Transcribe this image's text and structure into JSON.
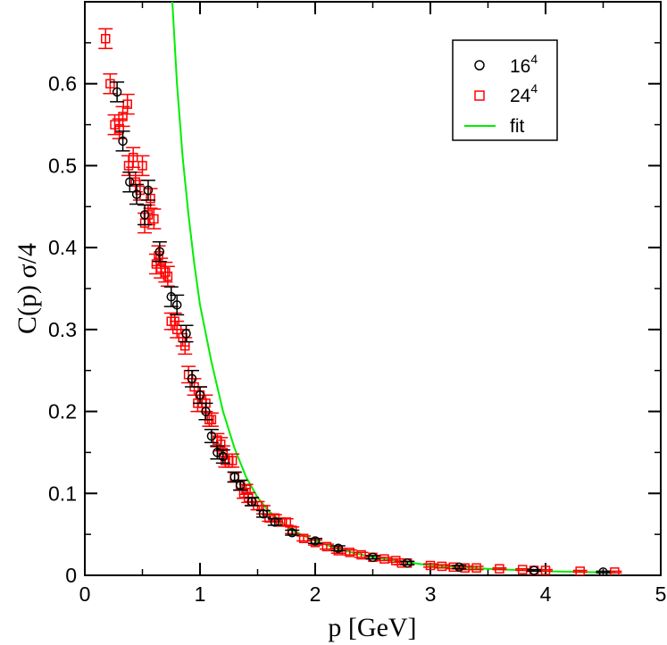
{
  "chart_data": {
    "type": "scatter",
    "title": "",
    "xlabel": "p [GeV]",
    "ylabel": "C(p) σ/4",
    "xlim": [
      0,
      5
    ],
    "ylim": [
      0,
      0.7
    ],
    "x_ticks": [
      "0",
      "1",
      "2",
      "3",
      "4",
      "5"
    ],
    "y_ticks": [
      "0",
      "0.1",
      "0.2",
      "0.3",
      "0.4",
      "0.5",
      "0.6"
    ],
    "grid": false,
    "legend_position": "top-right",
    "series": [
      {
        "name_base": "16",
        "name_sup": "4",
        "marker": "circle",
        "color": "#000000",
        "x": [
          0.28,
          0.33,
          0.39,
          0.45,
          0.52,
          0.55,
          0.65,
          0.75,
          0.8,
          0.88,
          0.93,
          1.0,
          1.05,
          1.1,
          1.15,
          1.2,
          1.3,
          1.35,
          1.45,
          1.55,
          1.65,
          1.8,
          2.0,
          2.2,
          2.5,
          2.8,
          3.25,
          3.9,
          4.5
        ],
        "y": [
          0.59,
          0.53,
          0.48,
          0.465,
          0.44,
          0.47,
          0.395,
          0.34,
          0.33,
          0.295,
          0.24,
          0.22,
          0.2,
          0.17,
          0.15,
          0.145,
          0.12,
          0.11,
          0.09,
          0.075,
          0.065,
          0.052,
          0.042,
          0.033,
          0.022,
          0.015,
          0.01,
          0.006,
          0.004
        ],
        "err": [
          0.012,
          0.012,
          0.012,
          0.012,
          0.012,
          0.012,
          0.012,
          0.012,
          0.012,
          0.01,
          0.01,
          0.01,
          0.01,
          0.008,
          0.008,
          0.008,
          0.006,
          0.006,
          0.005,
          0.004,
          0.004,
          0.003,
          0.003,
          0.003,
          0.002,
          0.002,
          0.002,
          0.001,
          0.001
        ]
      },
      {
        "name_base": "24",
        "name_sup": "4",
        "marker": "square",
        "color": "#ff0000",
        "x": [
          0.18,
          0.22,
          0.26,
          0.3,
          0.33,
          0.37,
          0.38,
          0.42,
          0.44,
          0.48,
          0.5,
          0.52,
          0.55,
          0.57,
          0.6,
          0.62,
          0.64,
          0.66,
          0.7,
          0.72,
          0.75,
          0.78,
          0.8,
          0.85,
          0.87,
          0.9,
          0.95,
          0.98,
          1.0,
          1.02,
          1.05,
          1.08,
          1.1,
          1.15,
          1.18,
          1.2,
          1.22,
          1.25,
          1.28,
          1.3,
          1.35,
          1.38,
          1.4,
          1.42,
          1.45,
          1.5,
          1.55,
          1.6,
          1.65,
          1.7,
          1.75,
          1.8,
          1.9,
          2.0,
          2.1,
          2.2,
          2.3,
          2.4,
          2.5,
          2.6,
          2.7,
          2.75,
          2.8,
          3.0,
          3.1,
          3.2,
          3.3,
          3.4,
          3.6,
          3.8,
          3.9,
          4.0,
          4.3,
          4.6
        ],
        "y": [
          0.655,
          0.6,
          0.55,
          0.545,
          0.56,
          0.575,
          0.5,
          0.51,
          0.48,
          0.47,
          0.5,
          0.43,
          0.44,
          0.46,
          0.435,
          0.38,
          0.39,
          0.375,
          0.37,
          0.365,
          0.31,
          0.31,
          0.3,
          0.29,
          0.28,
          0.245,
          0.23,
          0.21,
          0.22,
          0.21,
          0.21,
          0.19,
          0.19,
          0.165,
          0.16,
          0.15,
          0.14,
          0.14,
          0.14,
          0.12,
          0.11,
          0.1,
          0.105,
          0.095,
          0.09,
          0.085,
          0.08,
          0.07,
          0.07,
          0.065,
          0.065,
          0.055,
          0.045,
          0.04,
          0.035,
          0.03,
          0.028,
          0.025,
          0.022,
          0.02,
          0.018,
          0.015,
          0.015,
          0.012,
          0.011,
          0.01,
          0.009,
          0.009,
          0.008,
          0.007,
          0.006,
          0.006,
          0.005,
          0.004
        ],
        "err": [
          0.012,
          0.012,
          0.012,
          0.012,
          0.012,
          0.012,
          0.012,
          0.012,
          0.012,
          0.012,
          0.012,
          0.012,
          0.012,
          0.012,
          0.012,
          0.012,
          0.012,
          0.012,
          0.012,
          0.012,
          0.01,
          0.01,
          0.01,
          0.01,
          0.01,
          0.01,
          0.01,
          0.01,
          0.01,
          0.01,
          0.01,
          0.008,
          0.008,
          0.008,
          0.008,
          0.008,
          0.008,
          0.008,
          0.008,
          0.006,
          0.006,
          0.006,
          0.006,
          0.006,
          0.005,
          0.005,
          0.005,
          0.004,
          0.004,
          0.004,
          0.004,
          0.004,
          0.003,
          0.003,
          0.003,
          0.003,
          0.003,
          0.003,
          0.002,
          0.002,
          0.002,
          0.002,
          0.002,
          0.002,
          0.002,
          0.002,
          0.002,
          0.002,
          0.001,
          0.001,
          0.001,
          0.001,
          0.001,
          0.001
        ]
      },
      {
        "name": "fit",
        "type": "line",
        "color": "#00ee00",
        "x": [
          0.76,
          0.8,
          0.85,
          0.9,
          0.95,
          1.0,
          1.1,
          1.2,
          1.3,
          1.4,
          1.5,
          1.6,
          1.8,
          2.0,
          2.2,
          2.5,
          3.0,
          3.5,
          4.0,
          4.5,
          4.6
        ],
        "y": [
          0.7,
          0.6,
          0.51,
          0.44,
          0.38,
          0.33,
          0.26,
          0.2,
          0.155,
          0.12,
          0.095,
          0.078,
          0.055,
          0.042,
          0.032,
          0.022,
          0.012,
          0.008,
          0.005,
          0.0035,
          0.003
        ]
      }
    ]
  }
}
